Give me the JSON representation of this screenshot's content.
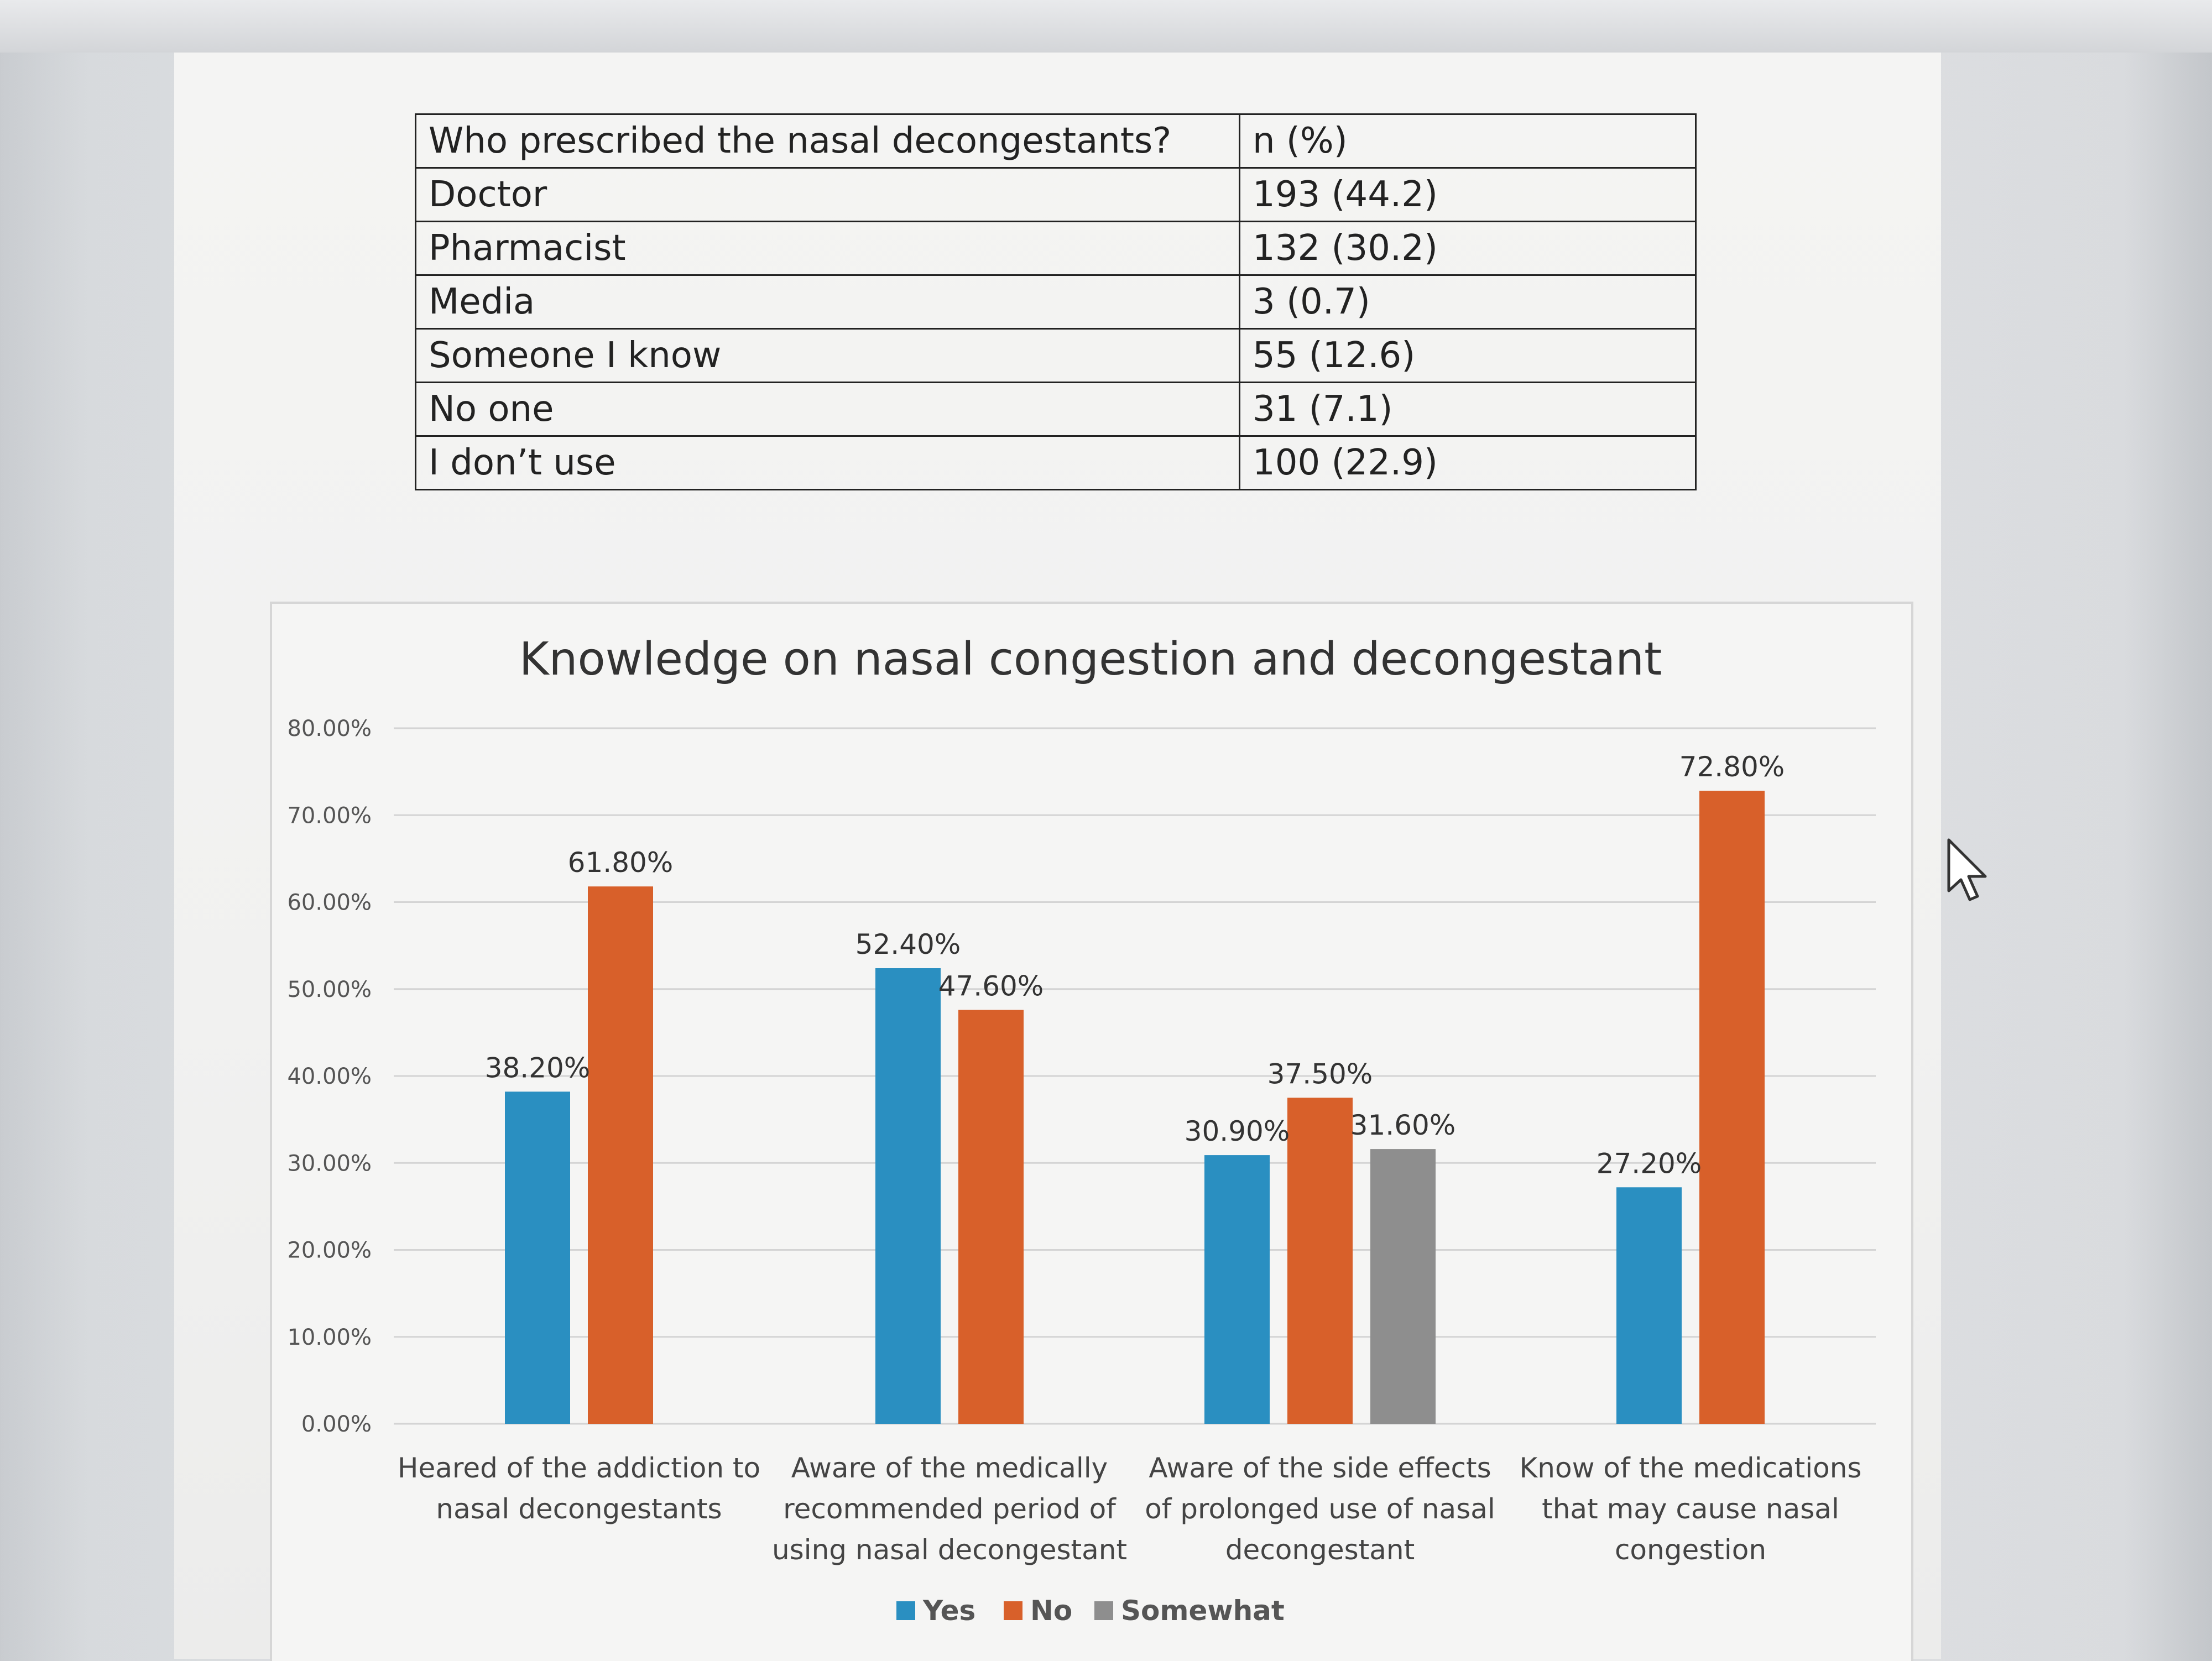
{
  "table": {
    "header": [
      "Who prescribed the nasal decongestants?",
      "n (%)"
    ],
    "rows": [
      [
        "Doctor",
        "193 (44.2)"
      ],
      [
        "Pharmacist",
        "132 (30.2)"
      ],
      [
        "Media",
        "3 (0.7)"
      ],
      [
        "Someone I know",
        "55 (12.6)"
      ],
      [
        "No one",
        "31 (7.1)"
      ],
      [
        "I don’t use",
        "100 (22.9)"
      ]
    ]
  },
  "colors": {
    "yes": "#2a8fc1",
    "no": "#d8602a",
    "somewhat": "#8e8e8e",
    "grid": "#d4d4d4"
  },
  "chart_data": {
    "type": "bar",
    "title": "Knowledge on nasal congestion and decongestant",
    "categories": [
      [
        "Heared of the addiction to",
        "nasal decongestants"
      ],
      [
        "Aware of the medically",
        "recommended period of",
        "using nasal decongestant"
      ],
      [
        "Aware of the side effects",
        "of prolonged use of nasal",
        "decongestant"
      ],
      [
        "Know of the medications",
        "that may cause nasal",
        "congestion"
      ]
    ],
    "series": [
      {
        "name": "Yes",
        "color_key": "yes",
        "values": [
          38.2,
          52.4,
          30.9,
          27.2
        ],
        "labels": [
          "38.20%",
          "52.40%",
          "30.90%",
          "27.20%"
        ]
      },
      {
        "name": "No",
        "color_key": "no",
        "values": [
          61.8,
          47.6,
          37.5,
          72.8
        ],
        "labels": [
          "61.80%",
          "47.60%",
          "37.50%",
          "72.80%"
        ]
      },
      {
        "name": "Somewhat",
        "color_key": "somewhat",
        "values": [
          null,
          null,
          31.6,
          null
        ],
        "labels": [
          "",
          "",
          "31.60%",
          ""
        ]
      }
    ],
    "ylim": [
      0,
      80
    ],
    "yticks": [
      "0.00%",
      "10.00%",
      "20.00%",
      "30.00%",
      "40.00%",
      "50.00%",
      "60.00%",
      "70.00%",
      "80.00%"
    ],
    "grid": true,
    "legend": "bottom-center"
  }
}
